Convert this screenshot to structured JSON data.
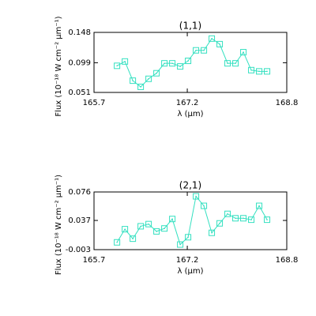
{
  "chart_data": [
    {
      "type": "line",
      "title": "(1,1)",
      "xlabel": "λ (μm)",
      "ylabel": "Flux (10⁻¹⁸ W cm⁻² μm⁻¹)",
      "x": [
        166.07,
        166.197,
        166.324,
        166.451,
        166.578,
        166.705,
        166.832,
        166.959,
        167.086,
        167.213,
        167.34,
        167.467,
        167.594,
        167.721,
        167.848,
        167.975,
        168.102,
        168.229,
        168.356,
        168.483
      ],
      "series": [
        {
          "name": "(1,1)",
          "color": "#33e0c0",
          "values": [
            0.094,
            0.101,
            0.07,
            0.06,
            0.073,
            0.082,
            0.098,
            0.098,
            0.093,
            0.102,
            0.119,
            0.119,
            0.138,
            0.129,
            0.098,
            0.098,
            0.116,
            0.087,
            0.085,
            0.085
          ]
        }
      ],
      "xlim": [
        165.7,
        168.8
      ],
      "xticks": [
        165.7,
        167.2,
        168.8
      ],
      "ylim": [
        0.051,
        0.148
      ],
      "yticks": [
        0.051,
        0.099,
        0.148
      ]
    },
    {
      "type": "line",
      "title": "(2,1)",
      "xlabel": "λ (μm)",
      "ylabel": "Flux (10⁻¹⁸ W cm⁻² μm⁻¹)",
      "x": [
        166.07,
        166.197,
        166.324,
        166.451,
        166.578,
        166.705,
        166.832,
        166.959,
        167.086,
        167.213,
        167.34,
        167.467,
        167.594,
        167.721,
        167.848,
        167.975,
        168.102,
        168.229,
        168.356,
        168.483
      ],
      "series": [
        {
          "name": "(2,1)",
          "color": "#33e0c0",
          "values": [
            0.007,
            0.025,
            0.012,
            0.029,
            0.032,
            0.022,
            0.026,
            0.039,
            0.004,
            0.014,
            0.07,
            0.057,
            0.02,
            0.033,
            0.046,
            0.04,
            0.04,
            0.038,
            0.057,
            0.038
          ]
        }
      ],
      "xlim": [
        165.7,
        168.8
      ],
      "xticks": [
        165.7,
        167.2,
        168.8
      ],
      "ylim": [
        -0.003,
        0.076
      ],
      "yticks": [
        -0.003,
        0.037,
        0.076
      ]
    }
  ]
}
